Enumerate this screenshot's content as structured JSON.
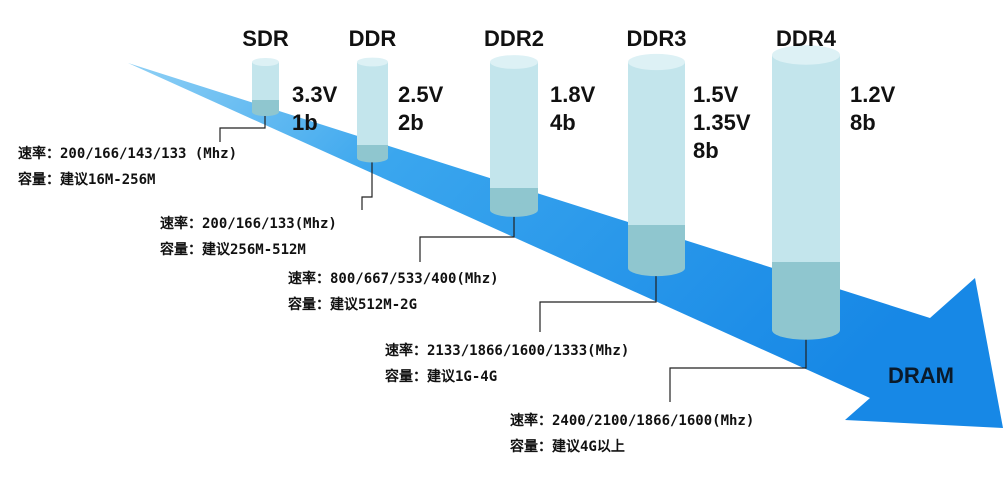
{
  "arrow_label": "DRAM",
  "generations": [
    {
      "name": "SDR",
      "specs": [
        "3.3V",
        "1b"
      ],
      "rate": "速率：200/166/143/133 (Mhz)",
      "capacity": "容量：建议16M-256M"
    },
    {
      "name": "DDR",
      "specs": [
        "2.5V",
        "2b"
      ],
      "rate": "速率：200/166/133(Mhz)",
      "capacity": "容量：建议256M-512M"
    },
    {
      "name": "DDR2",
      "specs": [
        "1.8V",
        "4b"
      ],
      "rate": "速率：800/667/533/400(Mhz)",
      "capacity": "容量：建议512M-2G"
    },
    {
      "name": "DDR3",
      "specs": [
        "1.5V",
        "1.35V",
        "8b"
      ],
      "rate": "速率：2133/1866/1600/1333(Mhz)",
      "capacity": "容量：建议1G-4G"
    },
    {
      "name": "DDR4",
      "specs": [
        "1.2V",
        "8b"
      ],
      "rate": "速率：2400/2100/1866/1600(Mhz)",
      "capacity": "容量：建议4G以上"
    }
  ]
}
